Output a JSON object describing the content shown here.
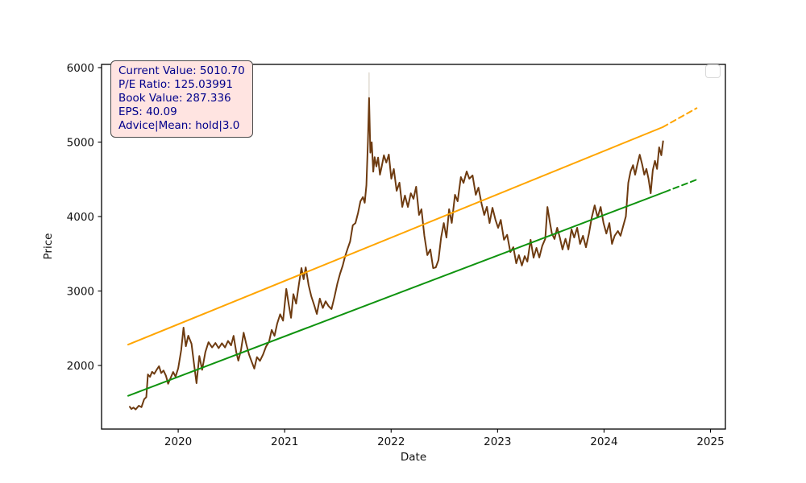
{
  "figure": {
    "xlabel": "Date",
    "ylabel": "Price"
  },
  "annotation": {
    "lines": [
      "Current Value: 5010.70",
      "P/E Ratio: 125.03991",
      "Book Value: 287.336",
      "EPS: 40.09",
      "Advice|Mean: hold|3.0"
    ],
    "background": "#ffe4e1",
    "text_color": "#00008b",
    "border_color": "#4b4b4b"
  },
  "legend": {
    "visible": true,
    "entries": []
  },
  "colors": {
    "price_line": "#6e3b10",
    "resistance_line": "#ffa500",
    "support_line": "#0f930f"
  },
  "chart_data": {
    "type": "line",
    "title": "",
    "xlabel": "Date",
    "ylabel": "Price",
    "xlim": [
      2019.28,
      2025.14
    ],
    "ylim": [
      1146,
      6043
    ],
    "x_ticks": [
      2020,
      2021,
      2022,
      2023,
      2024,
      2025
    ],
    "y_ticks": [
      2000,
      3000,
      4000,
      5000,
      6000
    ],
    "grid": false,
    "legend_position": "upper-right (empty frame)",
    "series": [
      {
        "name": "spike-wick",
        "color": "#d9d2c7",
        "width": 1.2,
        "dash": null,
        "x": [
          2021.793,
          2021.793
        ],
        "y": [
          5592,
          5930
        ]
      },
      {
        "name": "price",
        "color": "#6e3b10",
        "width": 2,
        "dash": null,
        "x": [
          2019.545,
          2019.56,
          2019.58,
          2019.6,
          2019.63,
          2019.655,
          2019.68,
          2019.7,
          2019.715,
          2019.735,
          2019.755,
          2019.775,
          2019.8,
          2019.82,
          2019.84,
          2019.862,
          2019.885,
          2019.905,
          2019.93,
          2019.952,
          2019.975,
          2020.0,
          2020.028,
          2020.05,
          2020.072,
          2020.095,
          2020.125,
          2020.15,
          2020.172,
          2020.198,
          2020.225,
          2020.255,
          2020.285,
          2020.318,
          2020.35,
          2020.38,
          2020.41,
          2020.44,
          2020.468,
          2020.497,
          2020.52,
          2020.545,
          2020.565,
          2020.59,
          2020.615,
          2020.64,
          2020.665,
          2020.69,
          2020.715,
          2020.74,
          2020.768,
          2020.797,
          2020.825,
          2020.853,
          2020.878,
          2020.905,
          2020.93,
          2020.958,
          2020.985,
          2021.015,
          2021.04,
          2021.06,
          2021.082,
          2021.108,
          2021.135,
          2021.158,
          2021.178,
          2021.198,
          2021.225,
          2021.25,
          2021.278,
          2021.302,
          2021.33,
          2021.358,
          2021.385,
          2021.412,
          2021.44,
          2021.468,
          2021.495,
          2021.52,
          2021.545,
          2021.565,
          2021.59,
          2021.615,
          2021.64,
          2021.665,
          2021.69,
          2021.712,
          2021.735,
          2021.752,
          2021.768,
          2021.782,
          2021.793,
          2021.805,
          2021.818,
          2021.832,
          2021.845,
          2021.862,
          2021.878,
          2021.895,
          2021.912,
          2021.932,
          2021.955,
          2021.978,
          2022.002,
          2022.025,
          2022.052,
          2022.078,
          2022.105,
          2022.13,
          2022.158,
          2022.185,
          2022.21,
          2022.235,
          2022.262,
          2022.285,
          2022.312,
          2022.34,
          2022.368,
          2022.395,
          2022.42,
          2022.445,
          2022.47,
          2022.495,
          2022.52,
          2022.545,
          2022.57,
          2022.6,
          2022.625,
          2022.655,
          2022.68,
          2022.71,
          2022.735,
          2022.765,
          2022.795,
          2022.82,
          2022.85,
          2022.875,
          2022.9,
          2022.925,
          2022.952,
          2022.98,
          2023.005,
          2023.03,
          2023.06,
          2023.09,
          2023.12,
          2023.148,
          2023.175,
          2023.2,
          2023.228,
          2023.255,
          2023.28,
          2023.31,
          2023.338,
          2023.365,
          2023.392,
          2023.42,
          2023.448,
          2023.468,
          2023.49,
          2023.51,
          2023.535,
          2023.56,
          2023.585,
          2023.61,
          2023.638,
          2023.665,
          2023.695,
          2023.72,
          2023.748,
          2023.775,
          2023.802,
          2023.83,
          2023.858,
          2023.885,
          2023.912,
          2023.94,
          2023.968,
          2023.995,
          2024.022,
          2024.05,
          2024.075,
          2024.1,
          2024.13,
          2024.155,
          2024.18,
          2024.205,
          2024.228,
          2024.25,
          2024.272,
          2024.292,
          2024.312,
          2024.335,
          2024.358,
          2024.378,
          2024.398,
          2024.418,
          2024.438,
          2024.458,
          2024.478,
          2024.498,
          2024.518,
          2024.538,
          2024.555
        ],
        "y": [
          1445,
          1415,
          1435,
          1410,
          1460,
          1440,
          1545,
          1575,
          1880,
          1848,
          1915,
          1888,
          1948,
          1990,
          1898,
          1932,
          1862,
          1755,
          1838,
          1912,
          1850,
          1962,
          2205,
          2508,
          2258,
          2400,
          2292,
          2005,
          1762,
          2128,
          1942,
          2180,
          2312,
          2242,
          2302,
          2232,
          2298,
          2242,
          2330,
          2270,
          2398,
          2180,
          2065,
          2205,
          2440,
          2285,
          2150,
          2052,
          1958,
          2112,
          2062,
          2148,
          2255,
          2318,
          2478,
          2398,
          2562,
          2688,
          2602,
          3028,
          2802,
          2640,
          2958,
          2830,
          3102,
          3308,
          3158,
          3318,
          3078,
          2930,
          2808,
          2692,
          2898,
          2772,
          2862,
          2798,
          2758,
          2922,
          3102,
          3232,
          3340,
          3452,
          3562,
          3665,
          3882,
          3912,
          4052,
          4205,
          4262,
          4185,
          4422,
          5012,
          5592,
          4858,
          4998,
          4602,
          4798,
          4672,
          4792,
          4562,
          4672,
          4822,
          4725,
          4832,
          4508,
          4638,
          4346,
          4455,
          4130,
          4282,
          4128,
          4312,
          4238,
          4400,
          4022,
          4098,
          3742,
          3482,
          3558,
          3308,
          3318,
          3415,
          3720,
          3912,
          3718,
          4098,
          3915,
          4292,
          4205,
          4530,
          4452,
          4605,
          4508,
          4552,
          4292,
          4388,
          4172,
          4022,
          4130,
          3912,
          4118,
          3958,
          3848,
          3955,
          3688,
          3755,
          3522,
          3588,
          3372,
          3482,
          3342,
          3468,
          3395,
          3688,
          3448,
          3578,
          3450,
          3608,
          3702,
          4128,
          3932,
          3772,
          3698,
          3848,
          3718,
          3558,
          3702,
          3558,
          3828,
          3718,
          3848,
          3632,
          3742,
          3588,
          3772,
          3988,
          4150,
          3988,
          4128,
          3912,
          3772,
          3912,
          3632,
          3742,
          3805,
          3742,
          3872,
          4002,
          4452,
          4608,
          4690,
          4562,
          4692,
          4830,
          4702,
          4562,
          4640,
          4508,
          4312,
          4622,
          4748,
          4640,
          4930,
          4822,
          5011
        ]
      },
      {
        "name": "resistance-trend",
        "color": "#ffa500",
        "width": 2,
        "dash": null,
        "x": [
          2019.53,
          2024.55
        ],
        "y": [
          2280,
          5200
        ]
      },
      {
        "name": "resistance-forecast",
        "color": "#ffa500",
        "width": 2,
        "dash": [
          7,
          4.5
        ],
        "x": [
          2024.55,
          2024.87
        ],
        "y": [
          5200,
          5455
        ]
      },
      {
        "name": "support-trend",
        "color": "#0f930f",
        "width": 2,
        "dash": null,
        "x": [
          2019.53,
          2024.57
        ],
        "y": [
          1592,
          4330
        ]
      },
      {
        "name": "support-forecast",
        "color": "#0f930f",
        "width": 2,
        "dash": [
          7,
          4.5
        ],
        "x": [
          2024.57,
          2024.88
        ],
        "y": [
          4330,
          4502
        ]
      }
    ]
  }
}
